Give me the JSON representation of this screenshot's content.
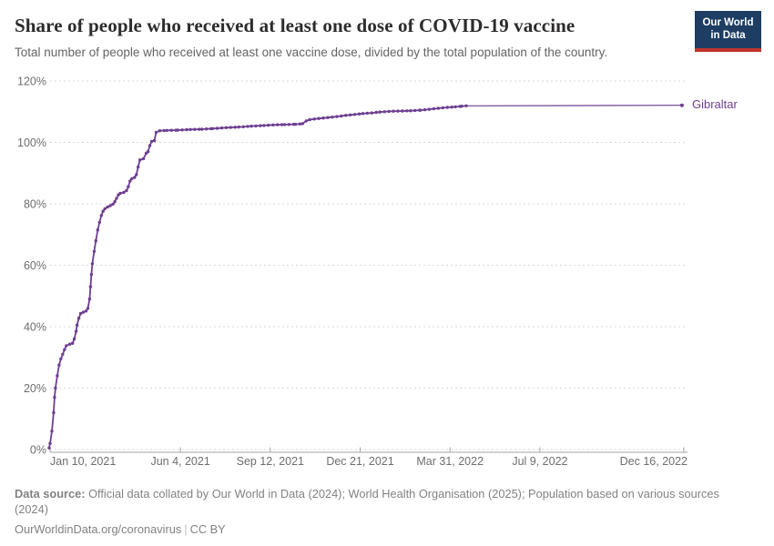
{
  "header": {
    "title": "Share of people who received at least one dose of COVID-19 vaccine",
    "subtitle": "Total number of people who received at least one vaccine dose, divided by the total population of the country.",
    "logo": {
      "line1": "Our World",
      "line2": "in Data",
      "bg_color": "#1d3d63",
      "bar_color": "#c0342b"
    }
  },
  "chart_data": {
    "type": "line",
    "title": "Share of people who received at least one dose of COVID-19 vaccine",
    "ylabel": "",
    "xlabel": "",
    "ylim": [
      0,
      120
    ],
    "grid": "dashed-horizontal",
    "yticks": [
      {
        "value": 0,
        "label": "0%"
      },
      {
        "value": 20,
        "label": "20%"
      },
      {
        "value": 40,
        "label": "40%"
      },
      {
        "value": 60,
        "label": "60%"
      },
      {
        "value": 80,
        "label": "80%"
      },
      {
        "value": 100,
        "label": "100%"
      },
      {
        "value": 120,
        "label": "120%"
      }
    ],
    "xticks": [
      {
        "date": "2021-01-10",
        "label": "Jan 10, 2021"
      },
      {
        "date": "2021-06-04",
        "label": "Jun 4, 2021"
      },
      {
        "date": "2021-09-12",
        "label": "Sep 12, 2021"
      },
      {
        "date": "2021-12-21",
        "label": "Dec 21, 2021"
      },
      {
        "date": "2022-03-31",
        "label": "Mar 31, 2022"
      },
      {
        "date": "2022-07-09",
        "label": "Jul 9, 2022"
      },
      {
        "date": "2022-12-16",
        "label": "Dec 16, 2022"
      }
    ],
    "dot_end_date": "2022-04-18",
    "series": [
      {
        "name": "Gibraltar",
        "color": "#6d3e91",
        "points": [
          [
            "2021-01-09",
            0.5
          ],
          [
            "2021-01-10",
            2
          ],
          [
            "2021-01-12",
            6
          ],
          [
            "2021-01-14",
            12
          ],
          [
            "2021-01-15",
            17
          ],
          [
            "2021-01-16",
            20
          ],
          [
            "2021-01-18",
            24
          ],
          [
            "2021-01-20",
            27.5
          ],
          [
            "2021-01-22",
            29.5
          ],
          [
            "2021-01-24",
            31
          ],
          [
            "2021-01-26",
            32.5
          ],
          [
            "2021-01-28",
            33.8
          ],
          [
            "2021-02-01",
            34.3
          ],
          [
            "2021-02-04",
            34.6
          ],
          [
            "2021-02-06",
            36
          ],
          [
            "2021-02-08",
            38.5
          ],
          [
            "2021-02-09",
            40.5
          ],
          [
            "2021-02-11",
            42.8
          ],
          [
            "2021-02-13",
            44.3
          ],
          [
            "2021-02-16",
            44.7
          ],
          [
            "2021-02-19",
            45.1
          ],
          [
            "2021-02-21",
            46
          ],
          [
            "2021-02-23",
            49
          ],
          [
            "2021-02-24",
            53
          ],
          [
            "2021-02-25",
            57
          ],
          [
            "2021-02-26",
            60.5
          ],
          [
            "2021-02-28",
            64.5
          ],
          [
            "2021-03-02",
            68
          ],
          [
            "2021-03-04",
            71.5
          ],
          [
            "2021-03-06",
            74
          ],
          [
            "2021-03-08",
            76.2
          ],
          [
            "2021-03-10",
            77.6
          ],
          [
            "2021-03-12",
            78.4
          ],
          [
            "2021-03-15",
            79.0
          ],
          [
            "2021-03-18",
            79.4
          ],
          [
            "2021-03-21",
            79.9
          ],
          [
            "2021-03-23",
            80.7
          ],
          [
            "2021-03-25",
            81.8
          ],
          [
            "2021-03-27",
            82.9
          ],
          [
            "2021-03-29",
            83.4
          ],
          [
            "2021-04-02",
            83.7
          ],
          [
            "2021-04-05",
            84.3
          ],
          [
            "2021-04-07",
            85.6
          ],
          [
            "2021-04-09",
            87.4
          ],
          [
            "2021-04-11",
            88.2
          ],
          [
            "2021-04-14",
            88.6
          ],
          [
            "2021-04-16",
            89.5
          ],
          [
            "2021-04-18",
            92
          ],
          [
            "2021-04-20",
            94.3
          ],
          [
            "2021-04-24",
            94.7
          ],
          [
            "2021-04-27",
            96.5
          ],
          [
            "2021-04-29",
            97.0
          ],
          [
            "2021-05-01",
            99.0
          ],
          [
            "2021-05-03",
            100.3
          ],
          [
            "2021-05-06",
            100.6
          ],
          [
            "2021-05-08",
            103.3
          ],
          [
            "2021-05-12",
            103.8
          ],
          [
            "2021-05-20",
            103.9
          ],
          [
            "2021-06-01",
            104.0
          ],
          [
            "2021-06-15",
            104.2
          ],
          [
            "2021-06-28",
            104.3
          ],
          [
            "2021-07-10",
            104.5
          ],
          [
            "2021-07-25",
            104.8
          ],
          [
            "2021-08-08",
            105.0
          ],
          [
            "2021-08-22",
            105.3
          ],
          [
            "2021-09-05",
            105.5
          ],
          [
            "2021-09-15",
            105.7
          ],
          [
            "2021-09-28",
            105.8
          ],
          [
            "2021-10-10",
            105.9
          ],
          [
            "2021-10-18",
            106.1
          ],
          [
            "2021-10-22",
            107.0
          ],
          [
            "2021-10-26",
            107.4
          ],
          [
            "2021-11-05",
            107.8
          ],
          [
            "2021-11-15",
            108.1
          ],
          [
            "2021-11-25",
            108.4
          ],
          [
            "2021-12-05",
            108.8
          ],
          [
            "2021-12-15",
            109.1
          ],
          [
            "2021-12-24",
            109.4
          ],
          [
            "2022-01-03",
            109.6
          ],
          [
            "2022-01-12",
            109.9
          ],
          [
            "2022-01-22",
            110.1
          ],
          [
            "2022-02-01",
            110.2
          ],
          [
            "2022-02-15",
            110.3
          ],
          [
            "2022-02-26",
            110.5
          ],
          [
            "2022-03-08",
            110.8
          ],
          [
            "2022-03-18",
            111.1
          ],
          [
            "2022-03-28",
            111.4
          ],
          [
            "2022-04-06",
            111.6
          ],
          [
            "2022-04-13",
            111.8
          ],
          [
            "2022-04-18",
            111.9
          ],
          [
            "2022-12-14",
            112.1
          ]
        ]
      }
    ]
  },
  "footer": {
    "source_label": "Data source:",
    "source_line1": "Official data collated by Our World in Data (2024); World Health Organisation (2025); Population based on various sources",
    "source_line2": "(2024)",
    "link": "OurWorldinData.org/coronavirus",
    "separator": "|",
    "license": "CC BY"
  }
}
